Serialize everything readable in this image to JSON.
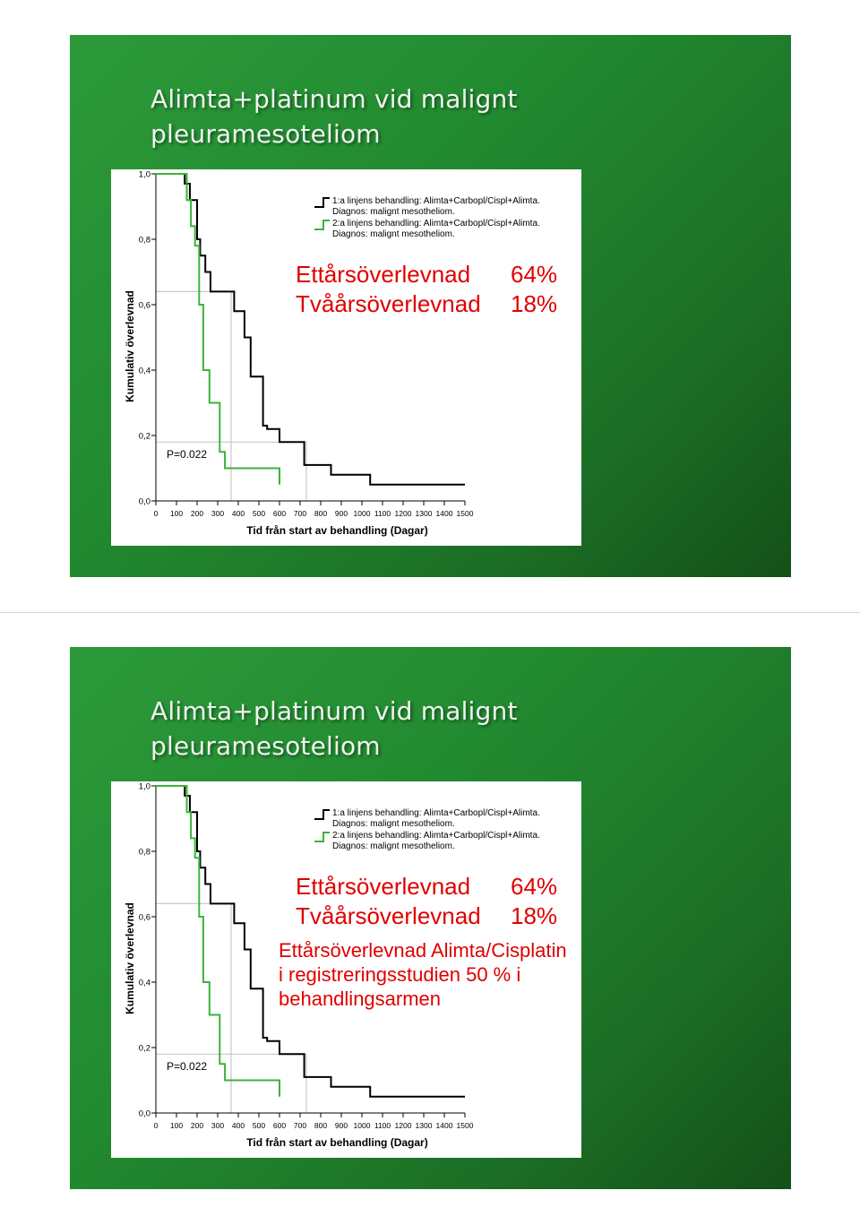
{
  "slides": [
    {
      "title_line1": "Alimta+platinum vid malignt",
      "title_line2": "pleuramesoteliom",
      "stats": [
        {
          "label": "Ettårsöverlevnad",
          "value": "64%"
        },
        {
          "label": "Tvåårsöverlevnad",
          "value": "18%"
        }
      ],
      "note_lines": []
    },
    {
      "title_line1": "Alimta+platinum vid malignt",
      "title_line2": "pleuramesoteliom",
      "stats": [
        {
          "label": "Ettårsöverlevnad",
          "value": "64%"
        },
        {
          "label": "Tvåårsöverlevnad",
          "value": "18%"
        }
      ],
      "note_lines": [
        "Ettårsöverlevnad Alimta/Cisplatin",
        "i registreringsstudien 50 % i",
        "behandlingsarmen"
      ]
    }
  ],
  "chart_data": {
    "type": "line",
    "title": "",
    "xlabel": "Tid från start av behandling (Dagar)",
    "ylabel": "Kumulativ överlevnad",
    "xlim": [
      0,
      1500
    ],
    "ylim": [
      0,
      1
    ],
    "x_ticks": [
      "0",
      "100",
      "200",
      "300",
      "400",
      "500",
      "600",
      "700",
      "800",
      "900",
      "1000",
      "1100",
      "1200",
      "1300",
      "1400",
      "1500"
    ],
    "y_ticks": [
      "0,0",
      "0,2",
      "0,4",
      "0,6",
      "0,8",
      "1,0"
    ],
    "annotation": "P=0.022",
    "legend_position": "top-right",
    "legend": [
      {
        "line1": "1:a linjens behandling: Alimta+Carbopl/Cispl+Alimta.",
        "line2": "Diagnos: malignt mesotheliom.",
        "color": "#000000"
      },
      {
        "line1": "2:a linjens behandling: Alimta+Carbopl/Cispl+Alimta.",
        "line2": "Diagnos: malignt mesotheliom.",
        "color": "#3cb33c"
      }
    ],
    "reference_lines": [
      {
        "color": "#c8c8c8",
        "y": 0.64,
        "x": 365
      },
      {
        "color": "#c8c8c8",
        "y": 0.18,
        "x": 730
      }
    ],
    "series": [
      {
        "color": "#000000",
        "x": [
          0,
          140,
          165,
          200,
          215,
          240,
          265,
          380,
          430,
          460,
          520,
          540,
          600,
          720,
          850,
          1040,
          1500
        ],
        "y": [
          1.0,
          0.97,
          0.92,
          0.8,
          0.75,
          0.7,
          0.64,
          0.58,
          0.5,
          0.38,
          0.23,
          0.22,
          0.18,
          0.11,
          0.08,
          0.05,
          0.05
        ]
      },
      {
        "color": "#3cb33c",
        "x": [
          0,
          150,
          170,
          190,
          210,
          230,
          260,
          310,
          335,
          600
        ],
        "y": [
          1.0,
          0.92,
          0.84,
          0.78,
          0.6,
          0.4,
          0.3,
          0.15,
          0.1,
          0.05
        ]
      }
    ]
  }
}
